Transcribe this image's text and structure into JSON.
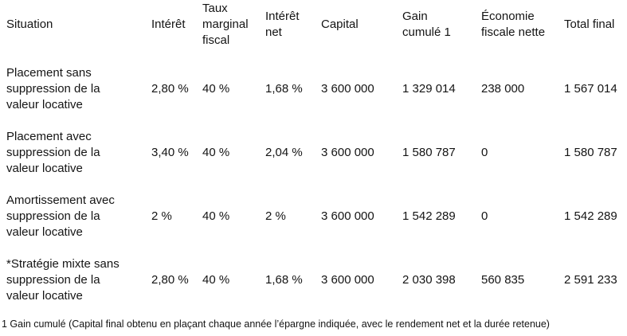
{
  "colors": {
    "background": "#ffffff",
    "text": "#141414"
  },
  "chart_data": {
    "type": "table",
    "title": "",
    "columns": [
      "Situation",
      "Intérêt",
      "Taux marginal fiscal",
      "Intérêt net",
      "Capital",
      "Gain cumulé 1",
      "Économie fiscale nette",
      "Total final"
    ],
    "rows": [
      [
        "Placement sans suppression de la valeur locative",
        "2,80 %",
        "40 %",
        "1,68 %",
        "3 600 000",
        "1 329 014",
        "238 000",
        "1 567 014"
      ],
      [
        "Placement avec suppression de la valeur locative",
        "3,40 %",
        "40 %",
        "2,04 %",
        "3 600 000",
        "1 580 787",
        "0",
        "1 580 787"
      ],
      [
        "Amortissement avec suppression de la valeur locative",
        "2 %",
        "40 %",
        "2 %",
        "3 600 000",
        "1 542 289",
        "0",
        "1 542 289"
      ],
      [
        "*Stratégie mixte sans suppression de la valeur locative",
        "2,80 %",
        "40 %",
        "1,68 %",
        "3 600 000",
        "2 030 398",
        "560 835",
        "2 591 233"
      ]
    ],
    "footnote": "1 Gain cumulé (Capital final obtenu en plaçant chaque année l’épargne indiquée, avec le rendement net et la durée retenue)",
    "layout": {
      "grid": false,
      "borders": "none",
      "header_position": "top",
      "alignment": "left"
    }
  }
}
